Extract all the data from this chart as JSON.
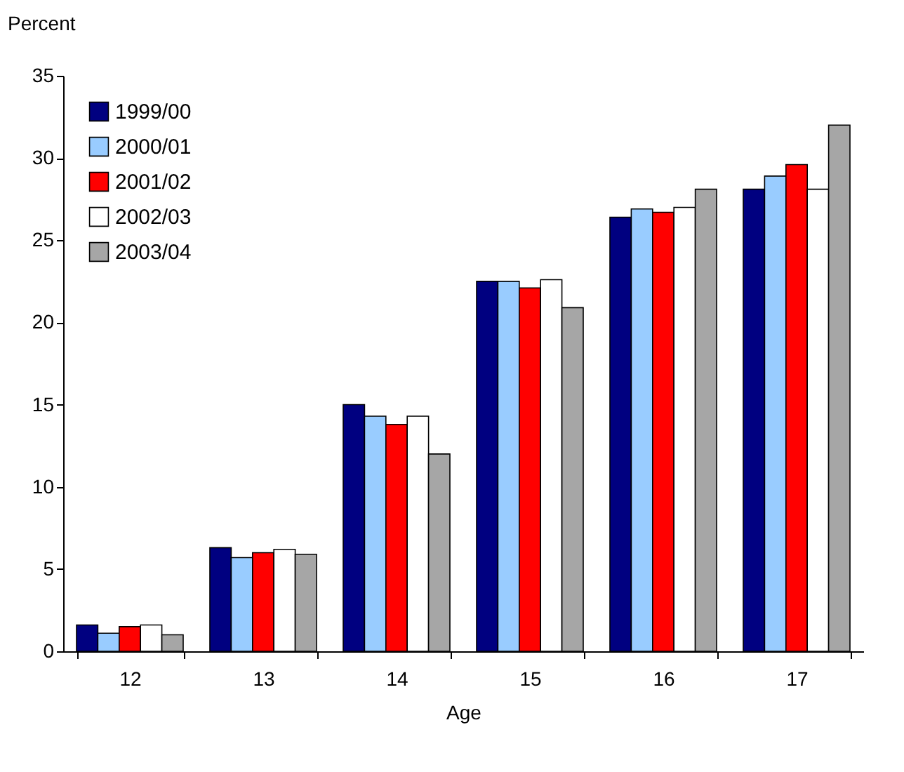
{
  "chart_data": {
    "type": "bar",
    "xlabel": "Age",
    "ylabel": "Percent",
    "categories": [
      "12",
      "13",
      "14",
      "15",
      "16",
      "17"
    ],
    "series": [
      {
        "name": "1999/00",
        "color": "#000080",
        "values": [
          1.6,
          6.3,
          15.0,
          22.5,
          26.4,
          28.1
        ]
      },
      {
        "name": "2000/01",
        "color": "#99ccff",
        "values": [
          1.1,
          5.7,
          14.3,
          22.5,
          26.9,
          28.9
        ]
      },
      {
        "name": "2001/02",
        "color": "#ff0000",
        "values": [
          1.5,
          6.0,
          13.8,
          22.1,
          26.7,
          29.6
        ]
      },
      {
        "name": "2002/03",
        "color": "#ffffff",
        "values": [
          1.6,
          6.2,
          14.3,
          22.6,
          27.0,
          28.1
        ]
      },
      {
        "name": "2003/04",
        "color": "#a6a6a6",
        "values": [
          1.0,
          5.9,
          12.0,
          20.9,
          28.1,
          32.0
        ]
      }
    ],
    "ylim": [
      0,
      35
    ],
    "yticks": [
      0,
      5,
      10,
      15,
      20,
      25,
      30,
      35
    ],
    "grid": false,
    "legend": "top left"
  }
}
